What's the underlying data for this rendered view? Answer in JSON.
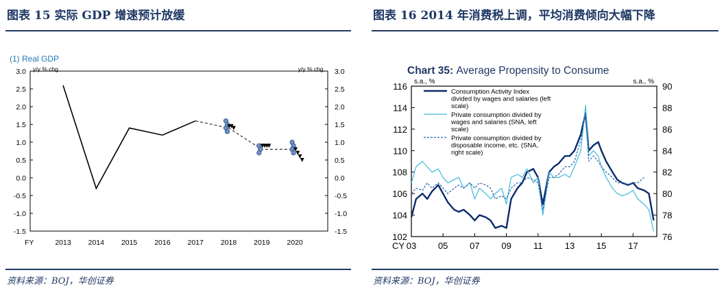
{
  "left": {
    "figure_title": "图表 15 实际 GDP 增速预计放缓",
    "source": "资料来源：BOJ，华创证券",
    "chart_data": {
      "type": "line",
      "title": "(1) Real GDP",
      "ylabel_left": "y/y % chg.",
      "ylabel_right": "y/y % chg.",
      "xlabel": "FY",
      "ylim": [
        -1.5,
        3.0
      ],
      "yticks": [
        "3.0",
        "2.5",
        "2.0",
        "1.5",
        "1.0",
        "0.5",
        "0.0",
        "-0.5",
        "-1.0",
        "-1.5"
      ],
      "categories": [
        "2013",
        "2014",
        "2015",
        "2016",
        "2017",
        "2018",
        "2019",
        "2020"
      ],
      "actual": [
        2.6,
        -0.3,
        1.4,
        1.2,
        1.6
      ],
      "forecast_line": [
        1.6,
        1.4,
        0.8,
        0.8
      ],
      "forecast_points": [
        {
          "year": "2018",
          "dots": [
            1.6,
            1.5,
            1.4,
            1.3
          ],
          "triangles": [
            1.45,
            1.45,
            1.4
          ]
        },
        {
          "year": "2019",
          "dots": [
            0.9,
            0.8,
            0.7
          ],
          "triangles": [
            0.9,
            0.9,
            0.9,
            0.9
          ]
        },
        {
          "year": "2020",
          "dots": [
            1.0,
            0.9,
            0.8,
            0.7
          ],
          "triangles": [
            0.8,
            0.7,
            0.6,
            0.5
          ]
        }
      ],
      "colors": {
        "actual": "#000000",
        "forecast": "#333333",
        "dot_fill": "#6f94c8",
        "triangle": "#000000",
        "title": "#1f78b4"
      }
    }
  },
  "right": {
    "figure_title": "图表 16 2014 年消费税上调，平均消费倾向大幅下降",
    "source": "资料来源：BOJ，华创证券",
    "chart_data": {
      "type": "line",
      "title_prefix": "Chart 35:",
      "title": "Average Propensity to Consume",
      "ylabel_left": "s.a., %",
      "ylabel_right": "s.a., %",
      "ylim_left": [
        102,
        116
      ],
      "yticks_left": [
        "116",
        "114",
        "112",
        "110",
        "108",
        "106",
        "104",
        "102"
      ],
      "ylim_right": [
        76,
        90
      ],
      "yticks_right": [
        "90",
        "88",
        "86",
        "84",
        "82",
        "80",
        "78",
        "76"
      ],
      "xlabel_prefix": "CY",
      "xticks": [
        "03",
        "05",
        "07",
        "09",
        "11",
        "13",
        "15",
        "17"
      ],
      "x_start": 2003,
      "x_end": 2018.5,
      "legend": [
        "Consumption Activity Index divided by wages and salaries (left scale)",
        "Private consumption divided by wages and salaries (SNA, left scale)",
        "Private consumption divided by disposable income, etc. (SNA, right scale)"
      ],
      "legend_lines": [
        [
          "Consumption Activity Index",
          "divided by wages and salaries (left",
          "scale)"
        ],
        [
          "Private consumption divided by",
          "wages and salaries (SNA, left",
          "scale)"
        ],
        [
          "Private consumption divided by",
          "disposable income, etc. (SNA,",
          "right scale)"
        ]
      ],
      "series": [
        {
          "name": "Consumption Activity Index divided by wages and salaries",
          "axis": "left",
          "color": "#0b2a6b",
          "x": [
            2003.0,
            2003.3,
            2003.7,
            2004.0,
            2004.3,
            2004.7,
            2005.0,
            2005.3,
            2005.7,
            2006.0,
            2006.3,
            2006.7,
            2007.0,
            2007.3,
            2007.7,
            2008.0,
            2008.3,
            2008.7,
            2009.0,
            2009.3,
            2009.7,
            2010.0,
            2010.3,
            2010.7,
            2011.0,
            2011.3,
            2011.7,
            2012.0,
            2012.3,
            2012.7,
            2013.0,
            2013.3,
            2013.7,
            2014.0,
            2014.2,
            2014.5,
            2014.8,
            2015.0,
            2015.3,
            2015.7,
            2016.0,
            2016.3,
            2016.7,
            2017.0,
            2017.3,
            2017.7,
            2018.0,
            2018.3
          ],
          "y": [
            103.8,
            105.5,
            106.0,
            105.5,
            106.2,
            106.8,
            106.0,
            105.2,
            104.5,
            104.3,
            104.5,
            104.0,
            103.5,
            104.0,
            103.8,
            103.5,
            102.8,
            103.0,
            102.8,
            105.5,
            106.5,
            107.0,
            108.0,
            108.3,
            107.5,
            105.0,
            108.0,
            108.5,
            108.8,
            109.5,
            109.5,
            110.0,
            111.5,
            113.5,
            110.0,
            110.5,
            110.8,
            110.0,
            109.0,
            108.0,
            107.3,
            107.0,
            106.8,
            107.0,
            106.5,
            106.3,
            106.0,
            103.5
          ]
        },
        {
          "name": "Private consumption divided by wages and salaries",
          "axis": "left",
          "color": "#3cb9dc",
          "x": [
            2003.0,
            2003.3,
            2003.7,
            2004.0,
            2004.3,
            2004.7,
            2005.0,
            2005.3,
            2005.7,
            2006.0,
            2006.3,
            2006.7,
            2007.0,
            2007.3,
            2007.7,
            2008.0,
            2008.3,
            2008.7,
            2009.0,
            2009.3,
            2009.7,
            2010.0,
            2010.3,
            2010.7,
            2011.0,
            2011.3,
            2011.7,
            2012.0,
            2012.3,
            2012.7,
            2013.0,
            2013.3,
            2013.7,
            2014.0,
            2014.2,
            2014.5,
            2014.8,
            2015.0,
            2015.3,
            2015.7,
            2016.0,
            2016.3,
            2016.7,
            2017.0,
            2017.3,
            2017.7,
            2018.0,
            2018.3
          ],
          "y": [
            107.0,
            108.5,
            109.0,
            108.5,
            108.0,
            108.3,
            107.5,
            107.0,
            107.3,
            107.5,
            106.5,
            107.0,
            105.5,
            106.5,
            106.0,
            105.5,
            106.0,
            106.5,
            105.0,
            107.5,
            107.8,
            107.5,
            108.3,
            107.0,
            107.5,
            104.0,
            108.0,
            107.5,
            107.5,
            107.8,
            107.5,
            108.5,
            110.0,
            114.2,
            109.5,
            110.0,
            109.5,
            108.5,
            107.5,
            106.5,
            106.0,
            105.8,
            106.0,
            106.3,
            105.5,
            105.0,
            104.5,
            102.5
          ]
        },
        {
          "name": "Private consumption divided by disposable income, etc.",
          "axis": "right",
          "color": "#2060b0",
          "dashed": true,
          "x": [
            2003.0,
            2003.3,
            2003.7,
            2004.0,
            2004.3,
            2004.7,
            2005.0,
            2005.3,
            2005.7,
            2006.0,
            2006.3,
            2006.7,
            2007.0,
            2007.3,
            2007.7,
            2008.0,
            2008.3,
            2008.7,
            2009.0,
            2009.3,
            2009.7,
            2010.0,
            2010.3,
            2010.7,
            2011.0,
            2011.3,
            2011.7,
            2012.0,
            2012.3,
            2012.7,
            2013.0,
            2013.3,
            2013.7,
            2014.0,
            2014.2,
            2014.5,
            2014.8,
            2015.0,
            2015.3,
            2015.7,
            2016.0,
            2016.3,
            2016.7,
            2017.0,
            2017.3,
            2017.7
          ],
          "y": [
            80.0,
            80.5,
            80.3,
            81.0,
            80.5,
            81.0,
            80.5,
            80.0,
            80.5,
            80.8,
            80.5,
            81.0,
            80.5,
            81.0,
            80.8,
            80.5,
            79.5,
            79.8,
            79.5,
            80.5,
            81.0,
            81.0,
            81.5,
            81.3,
            81.0,
            78.5,
            81.5,
            81.5,
            81.8,
            82.5,
            82.5,
            83.0,
            85.0,
            87.5,
            83.0,
            83.5,
            83.0,
            82.5,
            82.0,
            81.5,
            81.0,
            81.0,
            80.8,
            81.0,
            81.0,
            81.5
          ]
        }
      ]
    }
  }
}
